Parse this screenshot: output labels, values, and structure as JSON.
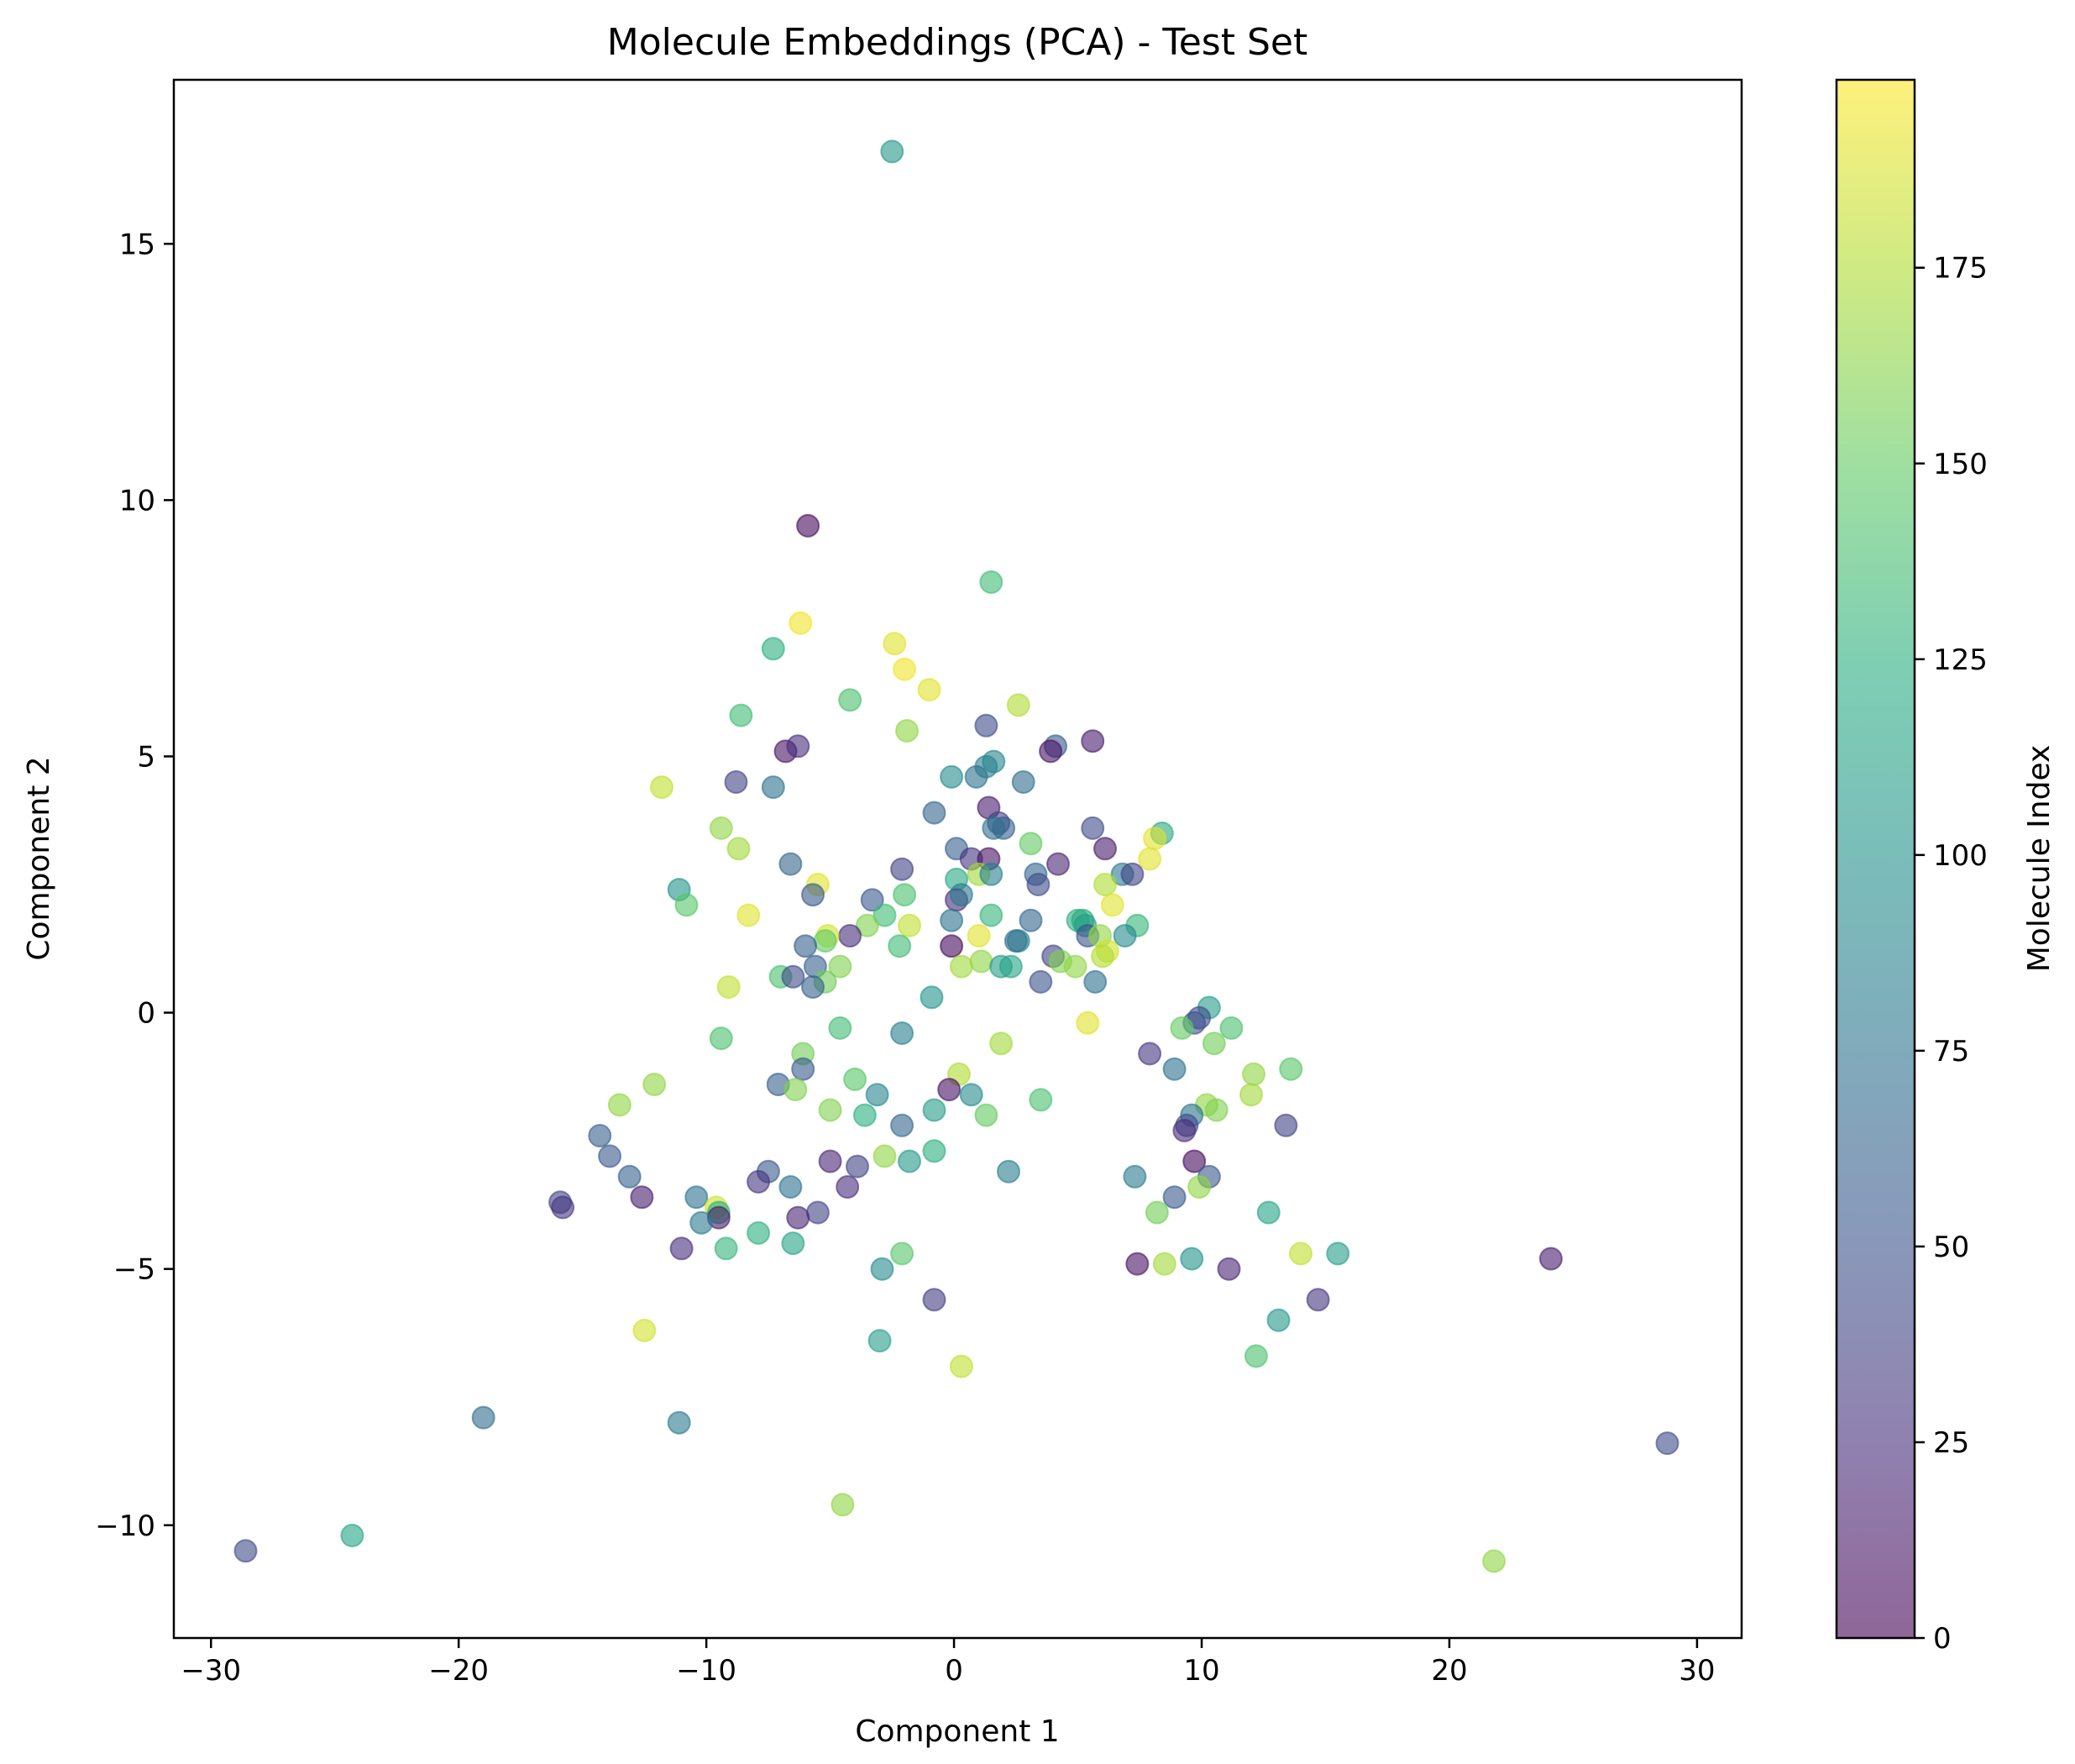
{
  "chart_data": {
    "type": "scatter",
    "title": "Molecule Embeddings (PCA) - Test Set",
    "xlabel": "Component 1",
    "ylabel": "Component 2",
    "xlim": [
      -31.5,
      31.8
    ],
    "ylim": [
      -12.2,
      18.2
    ],
    "xticks": [
      -30,
      -20,
      -10,
      0,
      10,
      20,
      30
    ],
    "xtick_labels": [
      "−30",
      "−20",
      "−10",
      "0",
      "10",
      "20",
      "30"
    ],
    "yticks": [
      -10,
      -5,
      0,
      5,
      10,
      15
    ],
    "ytick_labels": [
      "−10",
      "−5",
      "0",
      "5",
      "10",
      "15"
    ],
    "grid": false,
    "colormap": "viridis",
    "marker_alpha": 0.6,
    "colorbar": {
      "label": "Molecule Index",
      "range": [
        0,
        199
      ],
      "ticks": [
        0,
        25,
        50,
        75,
        100,
        125,
        150,
        175
      ],
      "tick_labels": [
        "0",
        "25",
        "50",
        "75",
        "100",
        "125",
        "150",
        "175"
      ]
    },
    "points": [
      {
        "x": -2.5,
        "y": 16.8,
        "c": 105
      },
      {
        "x": -5.9,
        "y": 9.5,
        "c": 5
      },
      {
        "x": 1.5,
        "y": 8.4,
        "c": 135
      },
      {
        "x": -6.2,
        "y": 7.6,
        "c": 195
      },
      {
        "x": -7.3,
        "y": 7.1,
        "c": 125
      },
      {
        "x": -2.4,
        "y": 7.2,
        "c": 190
      },
      {
        "x": -2.0,
        "y": 6.7,
        "c": 195
      },
      {
        "x": -1.0,
        "y": 6.3,
        "c": 190
      },
      {
        "x": -4.2,
        "y": 6.1,
        "c": 140
      },
      {
        "x": 2.6,
        "y": 6.0,
        "c": 175
      },
      {
        "x": -8.6,
        "y": 5.8,
        "c": 135
      },
      {
        "x": -1.9,
        "y": 5.5,
        "c": 165
      },
      {
        "x": 1.3,
        "y": 5.6,
        "c": 45
      },
      {
        "x": 4.1,
        "y": 5.2,
        "c": 55
      },
      {
        "x": 5.6,
        "y": 5.3,
        "c": 15
      },
      {
        "x": 3.9,
        "y": 5.1,
        "c": 10
      },
      {
        "x": -6.8,
        "y": 5.1,
        "c": 10
      },
      {
        "x": -6.3,
        "y": 5.2,
        "c": 25
      },
      {
        "x": -0.1,
        "y": 4.6,
        "c": 95
      },
      {
        "x": 1.3,
        "y": 4.8,
        "c": 85
      },
      {
        "x": 1.6,
        "y": 4.9,
        "c": 90
      },
      {
        "x": 0.9,
        "y": 4.6,
        "c": 75
      },
      {
        "x": 2.8,
        "y": 4.5,
        "c": 70
      },
      {
        "x": -8.8,
        "y": 4.5,
        "c": 40
      },
      {
        "x": -7.3,
        "y": 4.4,
        "c": 75
      },
      {
        "x": -11.8,
        "y": 4.4,
        "c": 180
      },
      {
        "x": 1.4,
        "y": 4.0,
        "c": 15
      },
      {
        "x": -0.8,
        "y": 3.9,
        "c": 65
      },
      {
        "x": 1.8,
        "y": 3.7,
        "c": 40
      },
      {
        "x": 2.0,
        "y": 3.6,
        "c": 60
      },
      {
        "x": 1.6,
        "y": 3.6,
        "c": 75
      },
      {
        "x": 5.6,
        "y": 3.6,
        "c": 45
      },
      {
        "x": 8.4,
        "y": 3.5,
        "c": 120
      },
      {
        "x": 8.1,
        "y": 3.4,
        "c": 190
      },
      {
        "x": -9.4,
        "y": 3.6,
        "c": 165
      },
      {
        "x": -8.7,
        "y": 3.2,
        "c": 170
      },
      {
        "x": 3.1,
        "y": 3.3,
        "c": 150
      },
      {
        "x": 0.1,
        "y": 3.2,
        "c": 60
      },
      {
        "x": 6.1,
        "y": 3.2,
        "c": 15
      },
      {
        "x": 0.7,
        "y": 3.0,
        "c": 30
      },
      {
        "x": 1.4,
        "y": 3.0,
        "c": 10
      },
      {
        "x": 7.9,
        "y": 3.0,
        "c": 190
      },
      {
        "x": -6.6,
        "y": 2.9,
        "c": 65
      },
      {
        "x": -2.1,
        "y": 2.8,
        "c": 40
      },
      {
        "x": 4.2,
        "y": 2.9,
        "c": 20
      },
      {
        "x": 1.0,
        "y": 2.7,
        "c": 170
      },
      {
        "x": 1.5,
        "y": 2.7,
        "c": 85
      },
      {
        "x": 0.1,
        "y": 2.6,
        "c": 120
      },
      {
        "x": 3.3,
        "y": 2.7,
        "c": 65
      },
      {
        "x": 6.8,
        "y": 2.7,
        "c": 80
      },
      {
        "x": 7.2,
        "y": 2.7,
        "c": 40
      },
      {
        "x": -5.5,
        "y": 2.5,
        "c": 190
      },
      {
        "x": -11.1,
        "y": 2.4,
        "c": 100
      },
      {
        "x": 3.4,
        "y": 2.5,
        "c": 45
      },
      {
        "x": 6.1,
        "y": 2.5,
        "c": 175
      },
      {
        "x": -5.7,
        "y": 2.3,
        "c": 55
      },
      {
        "x": -2.0,
        "y": 2.3,
        "c": 140
      },
      {
        "x": -3.3,
        "y": 2.2,
        "c": 55
      },
      {
        "x": 0.1,
        "y": 2.2,
        "c": 25
      },
      {
        "x": 0.3,
        "y": 2.3,
        "c": 80
      },
      {
        "x": -10.8,
        "y": 2.1,
        "c": 145
      },
      {
        "x": 6.4,
        "y": 2.1,
        "c": 190
      },
      {
        "x": -8.3,
        "y": 1.9,
        "c": 190
      },
      {
        "x": -2.8,
        "y": 1.9,
        "c": 135
      },
      {
        "x": -0.1,
        "y": 1.8,
        "c": 75
      },
      {
        "x": 1.5,
        "y": 1.9,
        "c": 130
      },
      {
        "x": 3.1,
        "y": 1.8,
        "c": 65
      },
      {
        "x": 5.0,
        "y": 1.8,
        "c": 125
      },
      {
        "x": 5.2,
        "y": 1.8,
        "c": 120
      },
      {
        "x": -3.5,
        "y": 1.7,
        "c": 160
      },
      {
        "x": -1.8,
        "y": 1.7,
        "c": 180
      },
      {
        "x": 5.3,
        "y": 1.7,
        "c": 110
      },
      {
        "x": 7.4,
        "y": 1.7,
        "c": 130
      },
      {
        "x": -4.2,
        "y": 1.5,
        "c": 25
      },
      {
        "x": -5.1,
        "y": 1.5,
        "c": 185
      },
      {
        "x": -5.2,
        "y": 1.4,
        "c": 150
      },
      {
        "x": 1.0,
        "y": 1.5,
        "c": 190
      },
      {
        "x": 2.6,
        "y": 1.4,
        "c": 90
      },
      {
        "x": 2.5,
        "y": 1.4,
        "c": 70
      },
      {
        "x": 5.4,
        "y": 1.5,
        "c": 50
      },
      {
        "x": 5.9,
        "y": 1.5,
        "c": 165
      },
      {
        "x": 6.9,
        "y": 1.5,
        "c": 95
      },
      {
        "x": -6.0,
        "y": 1.3,
        "c": 60
      },
      {
        "x": -2.2,
        "y": 1.3,
        "c": 135
      },
      {
        "x": -0.1,
        "y": 1.3,
        "c": 5
      },
      {
        "x": 6.2,
        "y": 1.2,
        "c": 185
      },
      {
        "x": 6.0,
        "y": 1.1,
        "c": 175
      },
      {
        "x": 4.0,
        "y": 1.1,
        "c": 40
      },
      {
        "x": 4.3,
        "y": 1.0,
        "c": 160
      },
      {
        "x": -5.6,
        "y": 0.9,
        "c": 60
      },
      {
        "x": -4.6,
        "y": 0.9,
        "c": 160
      },
      {
        "x": 0.3,
        "y": 0.9,
        "c": 170
      },
      {
        "x": 1.1,
        "y": 1.0,
        "c": 165
      },
      {
        "x": 1.9,
        "y": 0.9,
        "c": 110
      },
      {
        "x": 2.3,
        "y": 0.9,
        "c": 115
      },
      {
        "x": 4.9,
        "y": 0.9,
        "c": 165
      },
      {
        "x": -7.0,
        "y": 0.7,
        "c": 140
      },
      {
        "x": -6.5,
        "y": 0.7,
        "c": 45
      },
      {
        "x": -5.2,
        "y": 0.6,
        "c": 155
      },
      {
        "x": 3.5,
        "y": 0.6,
        "c": 50
      },
      {
        "x": 5.7,
        "y": 0.6,
        "c": 75
      },
      {
        "x": -9.1,
        "y": 0.5,
        "c": 180
      },
      {
        "x": -5.7,
        "y": 0.5,
        "c": 60
      },
      {
        "x": -0.9,
        "y": 0.3,
        "c": 100
      },
      {
        "x": 10.3,
        "y": 0.1,
        "c": 110
      },
      {
        "x": 9.9,
        "y": -0.1,
        "c": 45
      },
      {
        "x": 9.7,
        "y": -0.2,
        "c": 50
      },
      {
        "x": 5.4,
        "y": -0.2,
        "c": 190
      },
      {
        "x": -4.6,
        "y": -0.3,
        "c": 135
      },
      {
        "x": -2.1,
        "y": -0.4,
        "c": 85
      },
      {
        "x": 9.2,
        "y": -0.3,
        "c": 150
      },
      {
        "x": 11.2,
        "y": -0.3,
        "c": 140
      },
      {
        "x": -9.4,
        "y": -0.5,
        "c": 140
      },
      {
        "x": 1.9,
        "y": -0.6,
        "c": 170
      },
      {
        "x": 10.5,
        "y": -0.6,
        "c": 155
      },
      {
        "x": 7.9,
        "y": -0.8,
        "c": 30
      },
      {
        "x": -6.1,
        "y": -0.8,
        "c": 155
      },
      {
        "x": -6.1,
        "y": -1.1,
        "c": 55
      },
      {
        "x": 8.9,
        "y": -1.1,
        "c": 75
      },
      {
        "x": 13.6,
        "y": -1.1,
        "c": 145
      },
      {
        "x": 0.2,
        "y": -1.2,
        "c": 175
      },
      {
        "x": -4.0,
        "y": -1.3,
        "c": 145
      },
      {
        "x": 12.1,
        "y": -1.2,
        "c": 165
      },
      {
        "x": -0.2,
        "y": -1.5,
        "c": 10
      },
      {
        "x": -12.1,
        "y": -1.4,
        "c": 165
      },
      {
        "x": -7.1,
        "y": -1.4,
        "c": 60
      },
      {
        "x": -6.4,
        "y": -1.5,
        "c": 160
      },
      {
        "x": -3.1,
        "y": -1.6,
        "c": 90
      },
      {
        "x": 0.7,
        "y": -1.6,
        "c": 95
      },
      {
        "x": 3.5,
        "y": -1.7,
        "c": 140
      },
      {
        "x": 12.0,
        "y": -1.6,
        "c": 170
      },
      {
        "x": -13.5,
        "y": -1.8,
        "c": 165
      },
      {
        "x": 10.2,
        "y": -1.8,
        "c": 165
      },
      {
        "x": 10.6,
        "y": -1.9,
        "c": 160
      },
      {
        "x": -0.8,
        "y": -1.9,
        "c": 110
      },
      {
        "x": -5.0,
        "y": -1.9,
        "c": 160
      },
      {
        "x": -3.6,
        "y": -2.0,
        "c": 125
      },
      {
        "x": 1.3,
        "y": -2.0,
        "c": 150
      },
      {
        "x": 9.6,
        "y": -2.0,
        "c": 75
      },
      {
        "x": 9.4,
        "y": -2.2,
        "c": 45
      },
      {
        "x": 9.3,
        "y": -2.3,
        "c": 25
      },
      {
        "x": 13.4,
        "y": -2.2,
        "c": 40
      },
      {
        "x": -2.1,
        "y": -2.2,
        "c": 65
      },
      {
        "x": -14.3,
        "y": -2.4,
        "c": 60
      },
      {
        "x": -0.8,
        "y": -2.7,
        "c": 125
      },
      {
        "x": -2.8,
        "y": -2.8,
        "c": 165
      },
      {
        "x": -1.8,
        "y": -2.9,
        "c": 105
      },
      {
        "x": -13.9,
        "y": -2.8,
        "c": 55
      },
      {
        "x": -5.0,
        "y": -2.9,
        "c": 20
      },
      {
        "x": -3.9,
        "y": -3.0,
        "c": 40
      },
      {
        "x": 9.7,
        "y": -2.9,
        "c": 5
      },
      {
        "x": -7.5,
        "y": -3.1,
        "c": 55
      },
      {
        "x": 2.2,
        "y": -3.1,
        "c": 85
      },
      {
        "x": -13.1,
        "y": -3.2,
        "c": 60
      },
      {
        "x": -7.9,
        "y": -3.3,
        "c": 30
      },
      {
        "x": -6.6,
        "y": -3.4,
        "c": 75
      },
      {
        "x": -4.3,
        "y": -3.4,
        "c": 25
      },
      {
        "x": 7.3,
        "y": -3.2,
        "c": 80
      },
      {
        "x": 10.3,
        "y": -3.2,
        "c": 55
      },
      {
        "x": 9.9,
        "y": -3.4,
        "c": 165
      },
      {
        "x": -10.4,
        "y": -3.6,
        "c": 75
      },
      {
        "x": -12.6,
        "y": -3.6,
        "c": 15
      },
      {
        "x": -15.9,
        "y": -3.7,
        "c": 40
      },
      {
        "x": -15.8,
        "y": -3.8,
        "c": 30
      },
      {
        "x": 8.9,
        "y": -3.6,
        "c": 55
      },
      {
        "x": -9.6,
        "y": -3.8,
        "c": 185
      },
      {
        "x": -9.5,
        "y": -3.9,
        "c": 125
      },
      {
        "x": -9.5,
        "y": -4.0,
        "c": 15
      },
      {
        "x": -5.5,
        "y": -3.9,
        "c": 40
      },
      {
        "x": -6.3,
        "y": -4.0,
        "c": 20
      },
      {
        "x": 8.2,
        "y": -3.9,
        "c": 155
      },
      {
        "x": 12.7,
        "y": -3.9,
        "c": 115
      },
      {
        "x": -10.2,
        "y": -4.1,
        "c": 80
      },
      {
        "x": -7.9,
        "y": -4.3,
        "c": 125
      },
      {
        "x": -6.5,
        "y": -4.5,
        "c": 115
      },
      {
        "x": -9.2,
        "y": -4.6,
        "c": 130
      },
      {
        "x": -11.0,
        "y": -4.6,
        "c": 25
      },
      {
        "x": -2.1,
        "y": -4.7,
        "c": 145
      },
      {
        "x": 14.0,
        "y": -4.7,
        "c": 180
      },
      {
        "x": 15.5,
        "y": -4.7,
        "c": 110
      },
      {
        "x": 9.6,
        "y": -4.8,
        "c": 100
      },
      {
        "x": 24.1,
        "y": -4.8,
        "c": 15
      },
      {
        "x": 7.4,
        "y": -4.9,
        "c": 10
      },
      {
        "x": 8.5,
        "y": -4.9,
        "c": 170
      },
      {
        "x": -2.9,
        "y": -5.0,
        "c": 95
      },
      {
        "x": 11.1,
        "y": -5.0,
        "c": 20
      },
      {
        "x": -0.8,
        "y": -5.6,
        "c": 35
      },
      {
        "x": 14.7,
        "y": -5.6,
        "c": 30
      },
      {
        "x": 13.1,
        "y": -6.0,
        "c": 105
      },
      {
        "x": -12.5,
        "y": -6.2,
        "c": 185
      },
      {
        "x": -3.0,
        "y": -6.4,
        "c": 110
      },
      {
        "x": 12.2,
        "y": -6.7,
        "c": 140
      },
      {
        "x": 0.3,
        "y": -6.9,
        "c": 180
      },
      {
        "x": -19.0,
        "y": -7.9,
        "c": 70
      },
      {
        "x": -11.1,
        "y": -8.0,
        "c": 80
      },
      {
        "x": 28.8,
        "y": -8.4,
        "c": 45
      },
      {
        "x": -4.5,
        "y": -9.6,
        "c": 165
      },
      {
        "x": -24.3,
        "y": -10.2,
        "c": 115
      },
      {
        "x": -28.6,
        "y": -10.5,
        "c": 45
      },
      {
        "x": 21.8,
        "y": -10.7,
        "c": 165
      }
    ]
  }
}
